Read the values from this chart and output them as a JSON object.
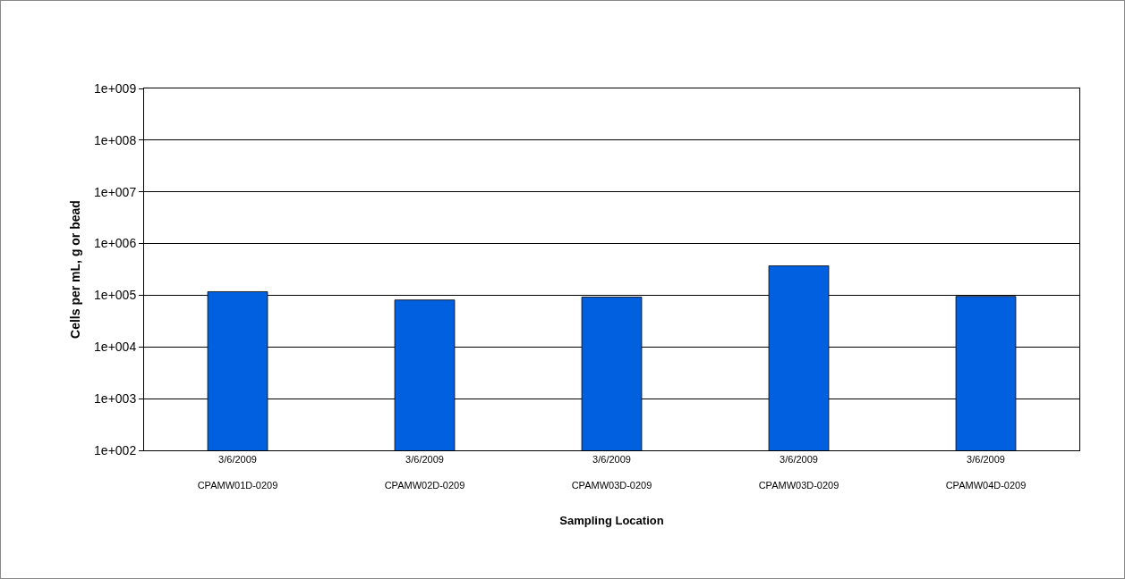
{
  "chart_data": {
    "type": "bar",
    "xlabel": "Sampling Location",
    "ylabel": "Cells per mL, g or bead",
    "categories": [
      "3/6/2009\nCPAMW01D-0209",
      "3/6/2009\nCPAMW02D-0209",
      "3/6/2009\nCPAMW03D-0209",
      "3/6/2009\nCPAMW03D-0209",
      "3/6/2009\nCPAMW04D-0209"
    ],
    "values": [
      117000,
      81000,
      92000,
      370000,
      95000
    ],
    "color": "#0060e0",
    "log": "y",
    "ylim": [
      100,
      1000000000
    ],
    "yticks": [
      {
        "value": 100,
        "label": "1e+002"
      },
      {
        "value": 1000,
        "label": "1e+003"
      },
      {
        "value": 10000,
        "label": "1e+004"
      },
      {
        "value": 100000,
        "label": "1e+005"
      },
      {
        "value": 1000000,
        "label": "1e+006"
      },
      {
        "value": 10000000,
        "label": "1e+007"
      },
      {
        "value": 100000000,
        "label": "1e+008"
      },
      {
        "value": 1000000000,
        "label": "1e+009"
      }
    ],
    "grid": "y",
    "legend": false
  }
}
